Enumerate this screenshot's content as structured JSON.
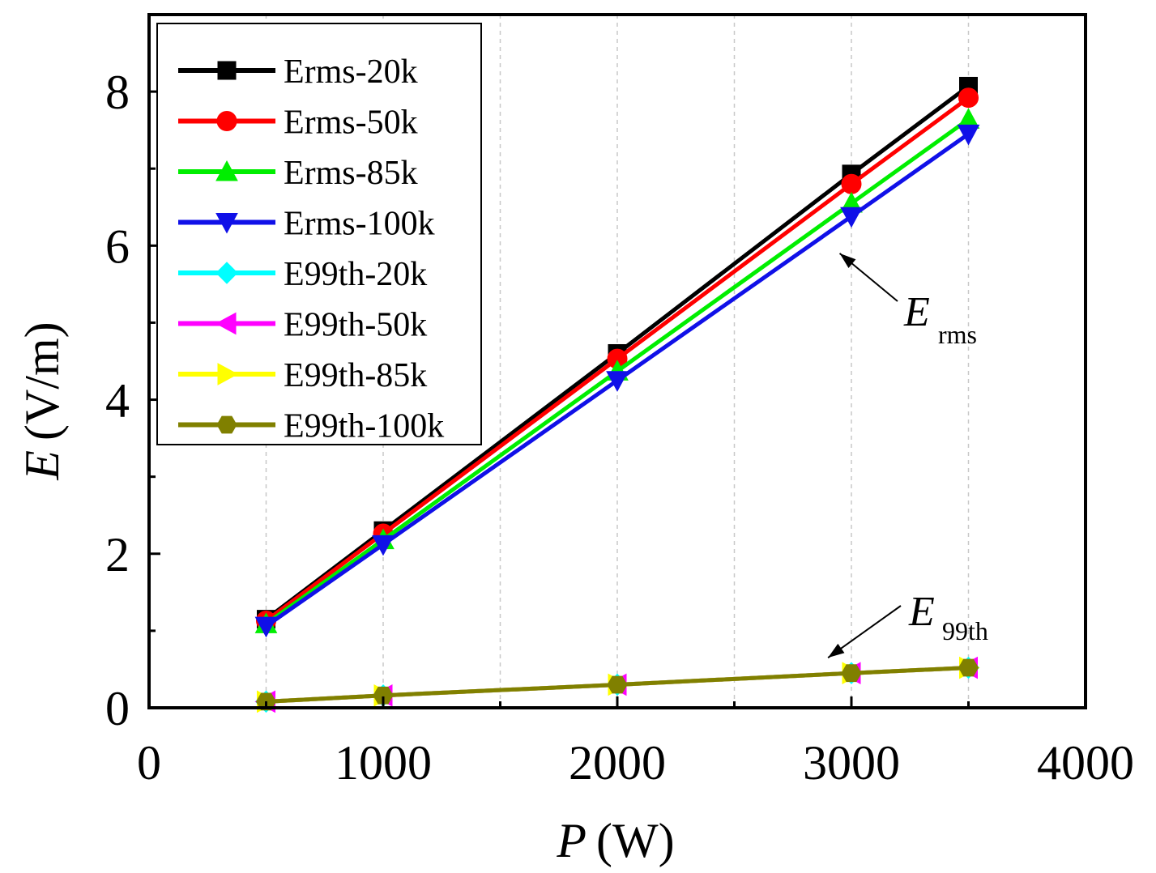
{
  "chart_data": {
    "type": "line",
    "title": "",
    "xlabel": {
      "var": "P",
      "unit": "(W)"
    },
    "ylabel": {
      "var": "E",
      "unit": "(V/m)"
    },
    "xlim": [
      0,
      4000
    ],
    "ylim": [
      0,
      9
    ],
    "xticks": [
      0,
      1000,
      2000,
      3000,
      4000
    ],
    "xtick_labels": [
      "0",
      "1000",
      "2000",
      "3000",
      "4000"
    ],
    "yticks": [
      0,
      2,
      4,
      6,
      8
    ],
    "ytick_labels": [
      "0",
      "2",
      "4",
      "6",
      "8"
    ],
    "grid": "vertical dashed",
    "legend_position": "top-left",
    "x": [
      500,
      1000,
      2000,
      3000,
      3500
    ],
    "series": [
      {
        "name": "Erms-20k",
        "color": "#000000",
        "marker": "square",
        "values": [
          1.15,
          2.3,
          4.6,
          6.93,
          8.07
        ]
      },
      {
        "name": "Erms-50k",
        "color": "#ff0000",
        "marker": "circle",
        "values": [
          1.13,
          2.26,
          4.53,
          6.8,
          7.92
        ]
      },
      {
        "name": "Erms-85k",
        "color": "#00ee00",
        "marker": "triangle-up",
        "values": [
          1.09,
          2.18,
          4.37,
          6.55,
          7.64
        ]
      },
      {
        "name": "Erms-100k",
        "color": "#1010e8",
        "marker": "triangle-down",
        "values": [
          1.06,
          2.12,
          4.25,
          6.38,
          7.45
        ]
      },
      {
        "name": "E99th-20k",
        "color": "#00ffff",
        "marker": "diamond",
        "values": [
          0.08,
          0.16,
          0.3,
          0.45,
          0.52
        ]
      },
      {
        "name": "E99th-50k",
        "color": "#ff00ff",
        "marker": "triangle-left",
        "values": [
          0.08,
          0.16,
          0.3,
          0.45,
          0.52
        ]
      },
      {
        "name": "E99th-85k",
        "color": "#ffff00",
        "marker": "triangle-right",
        "values": [
          0.08,
          0.16,
          0.3,
          0.45,
          0.52
        ]
      },
      {
        "name": "E99th-100k",
        "color": "#808000",
        "marker": "hexagon",
        "values": [
          0.08,
          0.16,
          0.3,
          0.45,
          0.52
        ]
      }
    ],
    "annotations": [
      {
        "main": "E",
        "sub": "rms",
        "points_to": {
          "x": 2950,
          "y": 5.9
        }
      },
      {
        "main": "E",
        "sub": "99th",
        "points_to": {
          "x": 2900,
          "y": 0.65
        }
      }
    ]
  }
}
